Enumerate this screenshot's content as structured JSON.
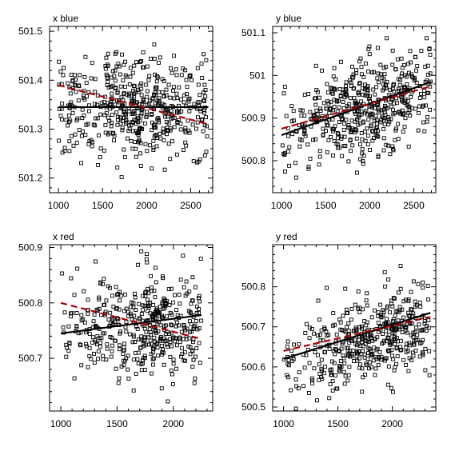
{
  "chart_data": [
    {
      "type": "scatter",
      "title": "x blue",
      "xlim": [
        900,
        2750
      ],
      "ylim": [
        501.17,
        501.51
      ],
      "xticks": [
        1000,
        1500,
        2000,
        2500
      ],
      "xtick_labels": [
        "1000",
        "1500",
        "2000",
        "2500"
      ],
      "yticks": [
        501.2,
        501.3,
        501.4,
        501.5
      ],
      "ytick_labels": [
        "501.2",
        "501.3",
        "501.4",
        "501.5"
      ],
      "grid": false,
      "n_points": 500,
      "point_x_range": [
        1000,
        2700
      ],
      "point_x_center": 1950,
      "point_y_center": 501.345,
      "point_y_spread": 0.05,
      "trend_lines": [
        {
          "style": "solid",
          "color": "#000000",
          "x": [
            1000,
            2700
          ],
          "y": [
            501.345,
            501.345
          ]
        },
        {
          "style": "dashed",
          "color": "#b00000",
          "x": [
            1000,
            2700
          ],
          "y": [
            501.39,
            501.31
          ]
        }
      ]
    },
    {
      "type": "scatter",
      "title": "y blue",
      "xlim": [
        900,
        2750
      ],
      "ylim": [
        500.725,
        501.115
      ],
      "xticks": [
        1000,
        1500,
        2000,
        2500
      ],
      "xtick_labels": [
        "1000",
        "1500",
        "2000",
        "2500"
      ],
      "yticks": [
        500.8,
        500.9,
        501.0,
        501.1
      ],
      "ytick_labels": [
        "500.8",
        "500.9",
        "501",
        "501.1"
      ],
      "grid": false,
      "n_points": 500,
      "point_x_range": [
        1000,
        2700
      ],
      "point_x_center": 1950,
      "point_y_center": 500.925,
      "point_y_spread": 0.055,
      "point_slope": 6.35e-05,
      "trend_lines": [
        {
          "style": "solid",
          "color": "#000000",
          "x": [
            1000,
            2700
          ],
          "y": [
            500.86,
            500.985
          ]
        },
        {
          "style": "dashed",
          "color": "#b00000",
          "x": [
            1000,
            2700
          ],
          "y": [
            500.875,
            500.975
          ]
        }
      ]
    },
    {
      "type": "scatter",
      "title": "x red",
      "xlim": [
        900,
        2350
      ],
      "ylim": [
        500.605,
        500.905
      ],
      "xticks": [
        1000,
        1500,
        2000
      ],
      "xtick_labels": [
        "1000",
        "1500",
        "2000"
      ],
      "yticks": [
        500.7,
        500.8,
        500.9
      ],
      "ytick_labels": [
        "500.7",
        "500.8",
        "500.9"
      ],
      "grid": false,
      "n_points": 450,
      "point_x_range": [
        1000,
        2250
      ],
      "point_x_center": 1800,
      "point_y_center": 500.755,
      "point_y_spread": 0.045,
      "trend_lines": [
        {
          "style": "solid",
          "color": "#000000",
          "x": [
            1000,
            2250
          ],
          "y": [
            500.745,
            500.778
          ]
        },
        {
          "style": "dashed",
          "color": "#b00000",
          "x": [
            1000,
            2250
          ],
          "y": [
            500.8,
            500.735
          ]
        }
      ]
    },
    {
      "type": "scatter",
      "title": "y red",
      "xlim": [
        900,
        2400
      ],
      "ylim": [
        500.49,
        500.905
      ],
      "xticks": [
        1000,
        1500,
        2000
      ],
      "xtick_labels": [
        "1000",
        "1500",
        "2000"
      ],
      "yticks": [
        500.5,
        500.6,
        500.7,
        500.8
      ],
      "ytick_labels": [
        "500.5",
        "500.6",
        "500.7",
        "500.8"
      ],
      "grid": false,
      "n_points": 450,
      "point_x_range": [
        1000,
        2350
      ],
      "point_x_center": 1850,
      "point_y_center": 500.675,
      "point_y_spread": 0.055,
      "point_slope": 8.2e-05,
      "trend_lines": [
        {
          "style": "solid",
          "color": "#000000",
          "x": [
            1000,
            2350
          ],
          "y": [
            500.62,
            500.735
          ]
        },
        {
          "style": "dashed",
          "color": "#b00000",
          "x": [
            1000,
            2350
          ],
          "y": [
            500.64,
            500.725
          ]
        }
      ]
    }
  ]
}
